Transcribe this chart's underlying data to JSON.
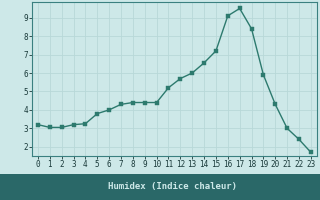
{
  "x": [
    0,
    1,
    2,
    3,
    4,
    5,
    6,
    7,
    8,
    9,
    10,
    11,
    12,
    13,
    14,
    15,
    16,
    17,
    18,
    19,
    20,
    21,
    22,
    23
  ],
  "y": [
    3.2,
    3.05,
    3.05,
    3.2,
    3.25,
    3.8,
    4.0,
    4.3,
    4.4,
    4.4,
    4.4,
    5.2,
    5.7,
    6.0,
    6.55,
    7.2,
    9.1,
    9.5,
    8.4,
    5.9,
    4.3,
    3.0,
    2.4,
    1.7
  ],
  "line_color": "#2d7a6e",
  "marker_color": "#2d7a6e",
  "bg_color": "#cde8e8",
  "grid_color": "#b8d8d8",
  "xlabel": "Humidex (Indice chaleur)",
  "xlim": [
    -0.5,
    23.5
  ],
  "ylim": [
    1.5,
    9.85
  ],
  "yticks": [
    2,
    3,
    4,
    5,
    6,
    7,
    8,
    9
  ],
  "xticks": [
    0,
    1,
    2,
    3,
    4,
    5,
    6,
    7,
    8,
    9,
    10,
    11,
    12,
    13,
    14,
    15,
    16,
    17,
    18,
    19,
    20,
    21,
    22,
    23
  ],
  "tick_fontsize": 5.5,
  "xlabel_fontsize": 6.5,
  "marker_size": 2.5,
  "line_width": 1.0,
  "bottom_bar_color": "#2a6868",
  "bottom_bar_text_color": "#cde8e8"
}
